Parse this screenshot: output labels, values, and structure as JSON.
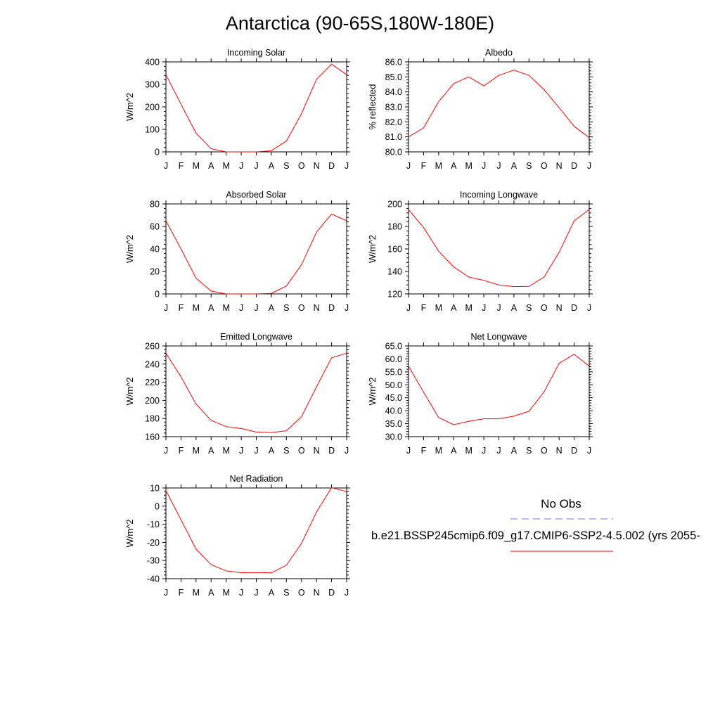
{
  "page": {
    "title": "Antarctica (90-65S,180W-180E)"
  },
  "legend": {
    "obs_label": "No Obs",
    "model_label": "b.e21.BSSP245cmip6.f09_g17.CMIP6-SSP2-4.5.002 (yrs 2055-",
    "obs_color": "#7070ff",
    "model_color": "#ff0000"
  },
  "chart_data": [
    {
      "type": "line",
      "title": "Incoming Solar",
      "ylabel": "W/m^2",
      "x": [
        "J",
        "F",
        "M",
        "A",
        "M",
        "J",
        "J",
        "A",
        "S",
        "O",
        "N",
        "D",
        "J"
      ],
      "ylim": [
        0,
        400
      ],
      "yticks": [
        0,
        100,
        200,
        300,
        400
      ],
      "tick_decimals": 0,
      "series": [
        {
          "values": [
            343,
            212,
            83,
            14,
            0,
            0,
            0,
            5,
            48,
            170,
            323,
            390,
            343
          ]
        }
      ]
    },
    {
      "type": "line",
      "title": "Albedo",
      "ylabel": "% reflected",
      "x": [
        "J",
        "F",
        "M",
        "A",
        "M",
        "J",
        "J",
        "A",
        "S",
        "O",
        "N",
        "D",
        "J"
      ],
      "ylim": [
        80.0,
        86.0
      ],
      "yticks": [
        80.0,
        81.0,
        82.0,
        83.0,
        84.0,
        85.0,
        86.0
      ],
      "tick_decimals": 1,
      "series": [
        {
          "values": [
            81.0,
            81.6,
            83.35,
            84.55,
            85.0,
            84.4,
            85.1,
            85.45,
            85.1,
            84.15,
            82.95,
            81.7,
            80.95
          ]
        }
      ]
    },
    {
      "type": "line",
      "title": "Absorbed Solar",
      "ylabel": "W/m^2",
      "x": [
        "J",
        "F",
        "M",
        "A",
        "M",
        "J",
        "J",
        "A",
        "S",
        "O",
        "N",
        "D",
        "J"
      ],
      "ylim": [
        0,
        80
      ],
      "yticks": [
        0,
        20,
        40,
        60,
        80
      ],
      "tick_decimals": 0,
      "series": [
        {
          "values": [
            65,
            40,
            14,
            2.5,
            0,
            0,
            0,
            0.5,
            7,
            26,
            55,
            71,
            65
          ]
        }
      ]
    },
    {
      "type": "line",
      "title": "Incoming Longwave",
      "ylabel": "W/m^2",
      "x": [
        "J",
        "F",
        "M",
        "A",
        "M",
        "J",
        "J",
        "A",
        "S",
        "O",
        "N",
        "D",
        "J"
      ],
      "ylim": [
        120,
        200
      ],
      "yticks": [
        120,
        140,
        160,
        180,
        200
      ],
      "tick_decimals": 0,
      "series": [
        {
          "values": [
            195,
            179,
            158,
            144,
            135,
            132,
            128,
            126.5,
            126.7,
            135,
            157,
            185,
            195
          ]
        }
      ]
    },
    {
      "type": "line",
      "title": "Emitted Longwave",
      "ylabel": "W/m^2",
      "x": [
        "J",
        "F",
        "M",
        "A",
        "M",
        "J",
        "J",
        "A",
        "S",
        "O",
        "N",
        "D",
        "J"
      ],
      "ylim": [
        160,
        260
      ],
      "yticks": [
        160,
        180,
        200,
        220,
        240,
        260
      ],
      "tick_decimals": 0,
      "series": [
        {
          "values": [
            252,
            226,
            196,
            178,
            171,
            169,
            165,
            164.5,
            166.5,
            182,
            215,
            247,
            252
          ]
        }
      ]
    },
    {
      "type": "line",
      "title": "Net Longwave",
      "ylabel": "W/m^2",
      "x": [
        "J",
        "F",
        "M",
        "A",
        "M",
        "J",
        "J",
        "A",
        "S",
        "O",
        "N",
        "D",
        "J"
      ],
      "ylim": [
        30.0,
        65.0
      ],
      "yticks": [
        30.0,
        35.0,
        40.0,
        45.0,
        50.0,
        55.0,
        60.0,
        65.0
      ],
      "tick_decimals": 1,
      "series": [
        {
          "values": [
            57.2,
            47.2,
            37.4,
            34.6,
            35.9,
            36.9,
            36.9,
            37.9,
            39.8,
            47.3,
            58.3,
            61.8,
            57.2
          ]
        }
      ]
    },
    {
      "type": "line",
      "title": "Net Radiation",
      "ylabel": "W/m^2",
      "x": [
        "J",
        "F",
        "M",
        "A",
        "M",
        "J",
        "J",
        "A",
        "S",
        "O",
        "N",
        "D",
        "J"
      ],
      "ylim": [
        -40,
        10
      ],
      "yticks": [
        -40,
        -30,
        -20,
        -10,
        0,
        10
      ],
      "tick_decimals": 0,
      "series": [
        {
          "values": [
            8.5,
            -7.5,
            -23.7,
            -32.3,
            -35.7,
            -36.7,
            -36.6,
            -36.8,
            -32.6,
            -20.6,
            -3.2,
            10.2,
            8.0
          ]
        }
      ]
    }
  ]
}
